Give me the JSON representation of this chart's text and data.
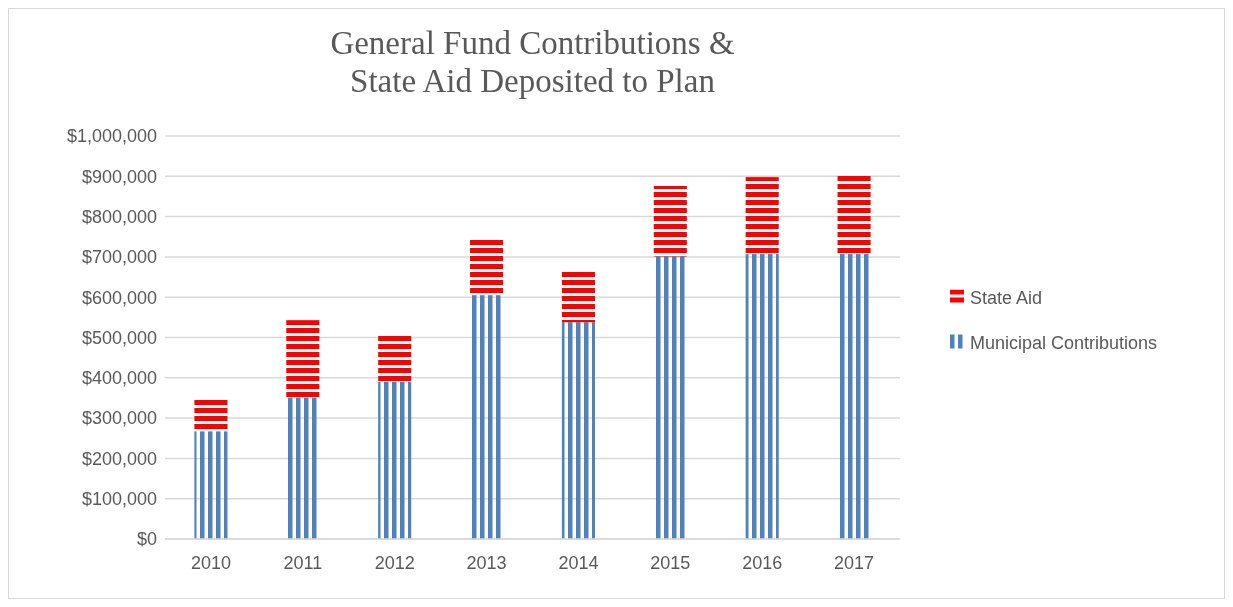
{
  "chart_data": {
    "type": "bar",
    "title": "General Fund Contributions &\nState Aid Deposited to Plan",
    "stacked": true,
    "categories": [
      "2010",
      "2011",
      "2012",
      "2013",
      "2014",
      "2015",
      "2016",
      "2017"
    ],
    "series": [
      {
        "name": "Municipal Contributions",
        "color": "#4f81bd",
        "values": [
          267000,
          351000,
          390000,
          605000,
          538000,
          701000,
          707000,
          707000
        ]
      },
      {
        "name": "State Aid",
        "color": "#ff0000",
        "values": [
          80000,
          192000,
          116000,
          137000,
          128000,
          175000,
          191000,
          194000
        ]
      }
    ],
    "ylim": [
      0,
      1000000
    ],
    "yticks": [
      {
        "value": 0,
        "label": "$0"
      },
      {
        "value": 100000,
        "label": "$100,000"
      },
      {
        "value": 200000,
        "label": "$200,000"
      },
      {
        "value": 300000,
        "label": "$300,000"
      },
      {
        "value": 400000,
        "label": "$400,000"
      },
      {
        "value": 500000,
        "label": "$500,000"
      },
      {
        "value": 600000,
        "label": "$600,000"
      },
      {
        "value": 700000,
        "label": "$700,000"
      },
      {
        "value": 800000,
        "label": "$800,000"
      },
      {
        "value": 900000,
        "label": "$900,000"
      },
      {
        "value": 1000000,
        "label": "$1,000,000"
      }
    ],
    "grid": "y",
    "legend": "right"
  }
}
